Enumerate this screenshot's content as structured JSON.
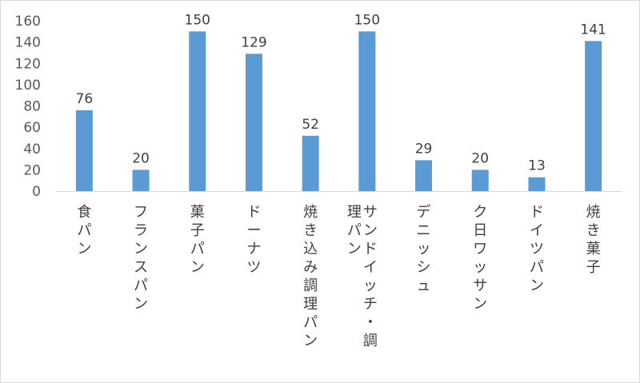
{
  "chart_data": {
    "type": "bar",
    "categories": [
      "食パン",
      "フランスパン",
      "菓子パン",
      "ドーナツ",
      "焼き込み調理パン",
      "サンドイッチ・調理パン",
      "デニッシュ",
      "ク日ワッサン",
      "ドイツパン",
      "焼き菓子"
    ],
    "series": [
      {
        "values": [
          76,
          20,
          150,
          129,
          52,
          150,
          29,
          20,
          13,
          141
        ]
      }
    ],
    "ylim": [
      0,
      160
    ],
    "yticks": [
      "0",
      "20",
      "40",
      "60",
      "80",
      "100",
      "120",
      "140",
      "160"
    ],
    "title": "",
    "xlabel": "",
    "ylabel": "",
    "grid": false,
    "legend": "none",
    "bar_color": "#5b9bd5",
    "axis_color": "#d9d9d9"
  }
}
